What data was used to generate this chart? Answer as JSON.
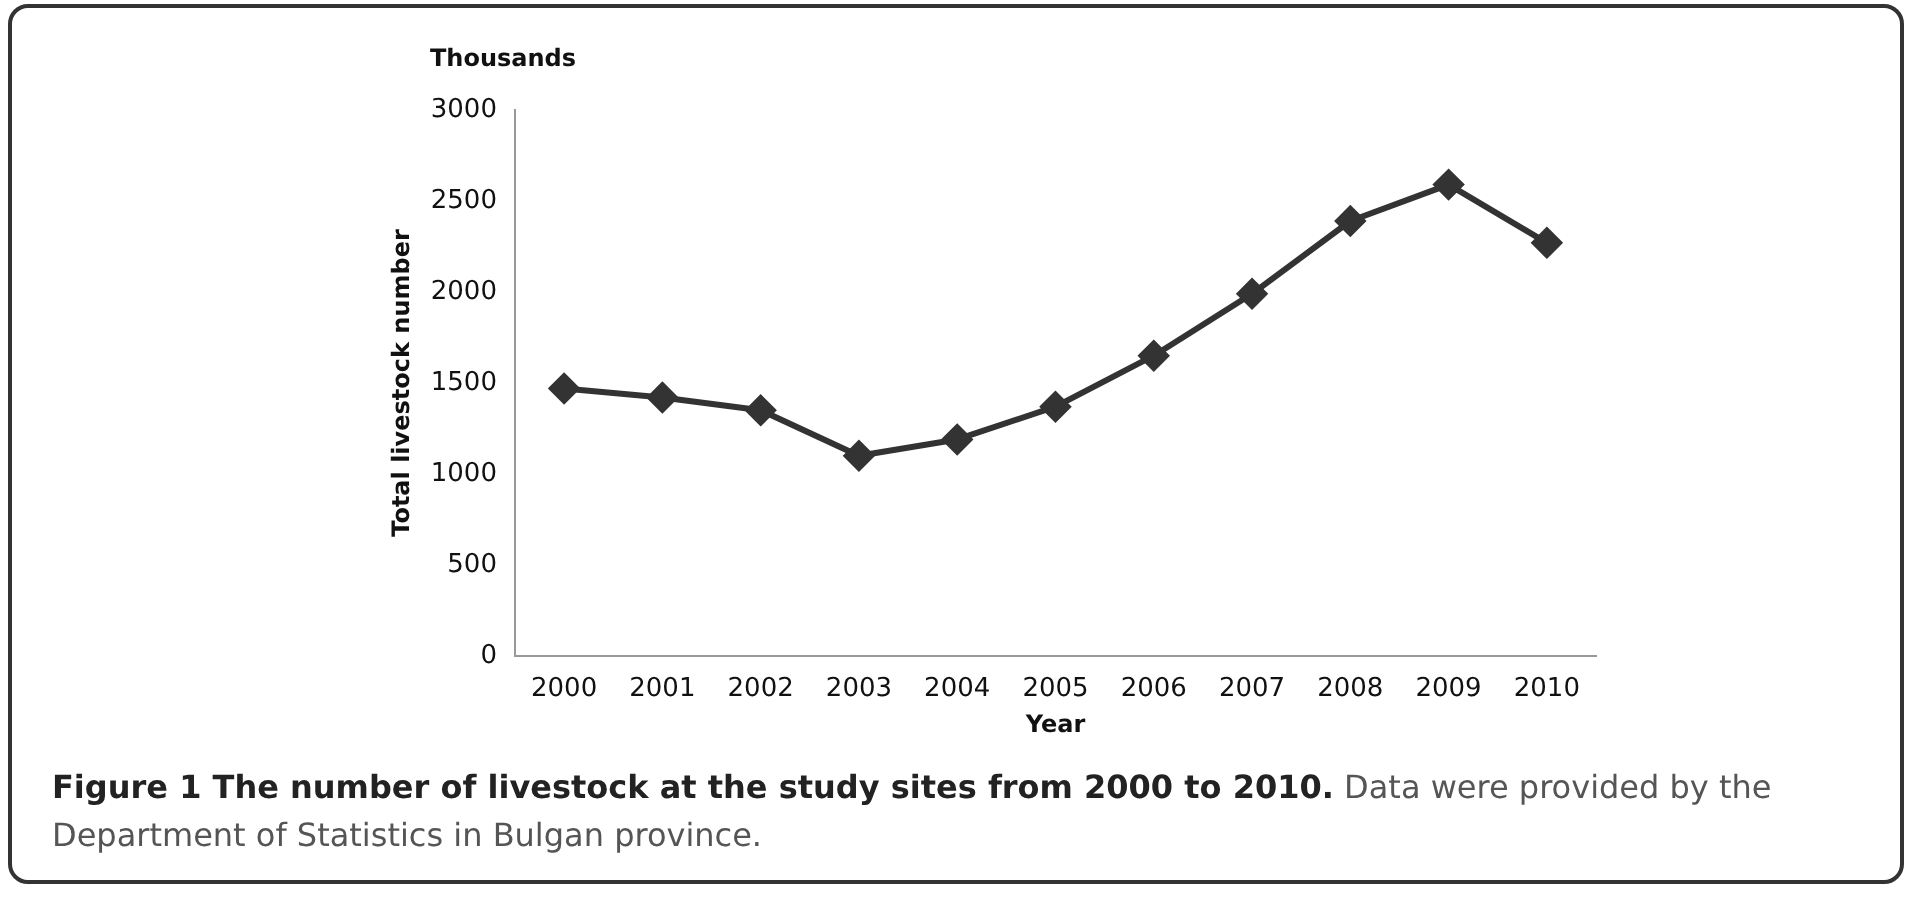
{
  "chart_data": {
    "type": "line",
    "title": "Figure 1 The number of livestock at the study sites from 2000 to 2010.",
    "annotations": [
      "Thousands",
      "Data were provided by the Department of Statistics in Bulgan province."
    ],
    "xlabel": "Year",
    "ylabel": "Total livestock number",
    "categories": [
      "2000",
      "2001",
      "2002",
      "2003",
      "2004",
      "2005",
      "2006",
      "2007",
      "2008",
      "2009",
      "2010"
    ],
    "series": [
      {
        "color": "#333333",
        "values": [
          1470,
          1420,
          1350,
          1100,
          1190,
          1370,
          1650,
          1990,
          2390,
          2590,
          2270
        ]
      }
    ],
    "ylim": [
      0,
      3000
    ],
    "yticks": [
      0,
      500,
      1000,
      1500,
      2000,
      2500,
      3000
    ],
    "grid": false,
    "legend": false,
    "marker": "diamond",
    "line_style": "solid"
  }
}
